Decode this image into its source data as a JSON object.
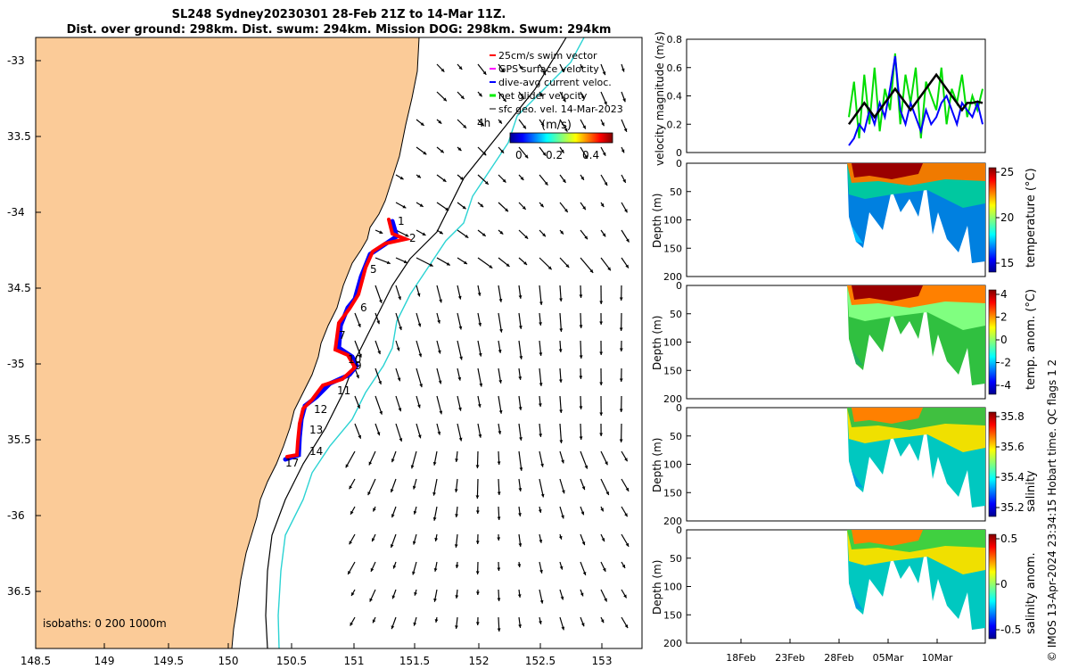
{
  "title": {
    "line1": "SL248 Sydney20230301 28-Feb 21Z to 14-Mar 11Z.",
    "line2": "Dist. over ground: 298km. Dist. swum: 294km. Mission DOG: 298km. Swum: 294km"
  },
  "map": {
    "lon_ticks": [
      "148.5",
      "149",
      "149.5",
      "150",
      "150.5",
      "151",
      "151.5",
      "152",
      "152.5",
      "153"
    ],
    "lat_ticks": [
      "-33",
      "33.5",
      "-34",
      "34.5",
      "-35",
      "35.5",
      "-36",
      "36.5"
    ],
    "legend": [
      {
        "label": "25cm/s swim vector",
        "color": "#ff0000"
      },
      {
        "label": "GPS surface velocity",
        "color": "#ff00ff"
      },
      {
        "label": "dive-avg current veloc.",
        "color": "#0000ff"
      },
      {
        "label": "net glider velocity",
        "color": "#00ee00"
      },
      {
        "label": "sfc geo. vel. 14-Mar-2023",
        "color": "#000000"
      }
    ],
    "colorbar": {
      "title": "(m/s)",
      "ticks": [
        "0",
        "0.2",
        "0.4"
      ]
    },
    "isobaths": "isobaths: 0   200  1000m",
    "label_4h": "4h",
    "waypoints": [
      "1",
      "2",
      "5",
      "6",
      "7",
      "9",
      "10",
      "11",
      "12",
      "13",
      "14",
      "17"
    ],
    "colors": {
      "land": "#fbcb98",
      "isobath_200": "#000000",
      "isobath_1000": "#2bd3d3",
      "track": "#ff0000",
      "track_dive": "#0000ff"
    }
  },
  "chart_data": [
    {
      "type": "line",
      "ylabel": "velocity magnitude (m/s)",
      "ylim": [
        0,
        0.8
      ],
      "yticks": [
        "0",
        "0.2",
        "0.4",
        "0.6",
        "0.8"
      ],
      "series": [
        {
          "name": "",
          "color": "#00dd00",
          "values": [
            0.25,
            0.5,
            0.1,
            0.55,
            0.2,
            0.6,
            0.15,
            0.45,
            0.3,
            0.7,
            0.2,
            0.55,
            0.35,
            0.6,
            0.1,
            0.5,
            0.4,
            0.3,
            0.6,
            0.2,
            0.45,
            0.35,
            0.55,
            0.25,
            0.4,
            0.3,
            0.45
          ]
        },
        {
          "name": "",
          "color": "#0000ff",
          "values": [
            0.05,
            0.1,
            0.2,
            0.15,
            0.3,
            0.2,
            0.35,
            0.25,
            0.45,
            0.68,
            0.3,
            0.2,
            0.35,
            0.25,
            0.15,
            0.3,
            0.2,
            0.25,
            0.35,
            0.4,
            0.3,
            0.2,
            0.35,
            0.3,
            0.25,
            0.35,
            0.2
          ]
        },
        {
          "name": "",
          "color": "#000000",
          "values": [
            0.2,
            0.25,
            0.3,
            0.35,
            0.3,
            0.25,
            0.3,
            0.35,
            0.4,
            0.45,
            0.4,
            0.35,
            0.3,
            0.35,
            0.4,
            0.45,
            0.5,
            0.55,
            0.5,
            0.45,
            0.4,
            0.35,
            0.3,
            0.35,
            0.35,
            0.36,
            0.35
          ]
        }
      ]
    },
    {
      "type": "heatmap",
      "ylabel": "Depth (m)",
      "colorbar_label": "temperature (°C)",
      "cticks": [
        "15",
        "20",
        "25"
      ],
      "yticks": [
        "0",
        "50",
        "100",
        "150",
        "200"
      ]
    },
    {
      "type": "heatmap",
      "ylabel": "Depth (m)",
      "colorbar_label": "temp. anom. (°C)",
      "cticks": [
        "-4",
        "-2",
        "0",
        "2",
        "4"
      ],
      "yticks": [
        "0",
        "50",
        "100",
        "150",
        "200"
      ]
    },
    {
      "type": "heatmap",
      "ylabel": "Depth (m)",
      "colorbar_label": "salinity",
      "cticks": [
        "35.2",
        "35.4",
        "35.6",
        "35.8"
      ],
      "yticks": [
        "0",
        "50",
        "100",
        "150",
        "200"
      ]
    },
    {
      "type": "heatmap",
      "ylabel": "Depth (m)",
      "colorbar_label": "salinity anom.",
      "cticks": [
        "-0.5",
        "0",
        "0.5"
      ],
      "yticks": [
        "0",
        "50",
        "100",
        "150",
        "200"
      ]
    }
  ],
  "time_axis": {
    "ticks": [
      "18Feb",
      "23Feb",
      "28Feb",
      "05Mar",
      "10Mar"
    ]
  },
  "footer": {
    "qc": "Hobart time. QC flags 1  2",
    "imos": "© IMOS 13-Apr-2024 23:34:15"
  }
}
